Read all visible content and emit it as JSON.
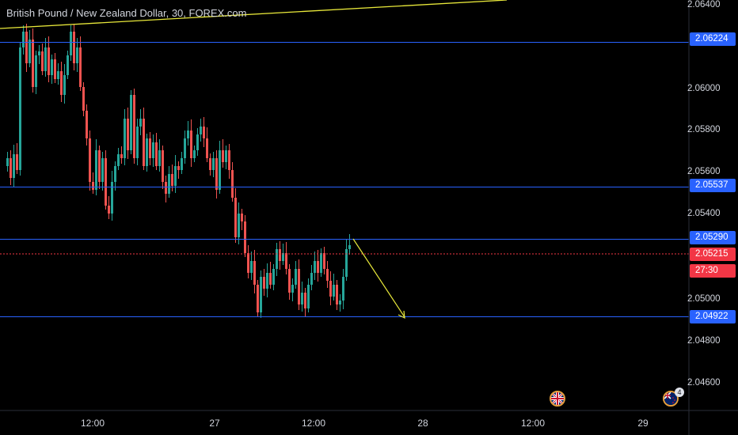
{
  "header": {
    "title": "British Pound / New Zealand Dollar, 30, FOREX.com"
  },
  "price_axis": {
    "ticks": [
      "2.06400",
      "2.06000",
      "2.05800",
      "2.05600",
      "2.05400",
      "2.05000",
      "2.04800",
      "2.04600"
    ]
  },
  "horizontal_levels": [
    {
      "price": 2.06224,
      "label": "2.06224",
      "color": "#2962ff"
    },
    {
      "price": 2.05537,
      "label": "2.05537",
      "color": "#2962ff"
    },
    {
      "price": 2.0529,
      "label": "2.05290",
      "color": "#2962ff"
    },
    {
      "price": 2.04922,
      "label": "2.04922",
      "color": "#2962ff"
    }
  ],
  "current_price": {
    "label": "2.05215",
    "countdown": "27:30",
    "color": "#f23645"
  },
  "time_axis": {
    "ticks": [
      "12:00",
      "27",
      "12:00",
      "28",
      "12:00",
      "29"
    ]
  },
  "events": [
    {
      "icon": "uk-flag-icon"
    },
    {
      "icon": "nz-flag-icon",
      "count": "4"
    }
  ],
  "colors": {
    "up": "#26a69a",
    "down": "#ef5350",
    "level": "#2962ff",
    "trendline": "#e8e83a"
  }
}
